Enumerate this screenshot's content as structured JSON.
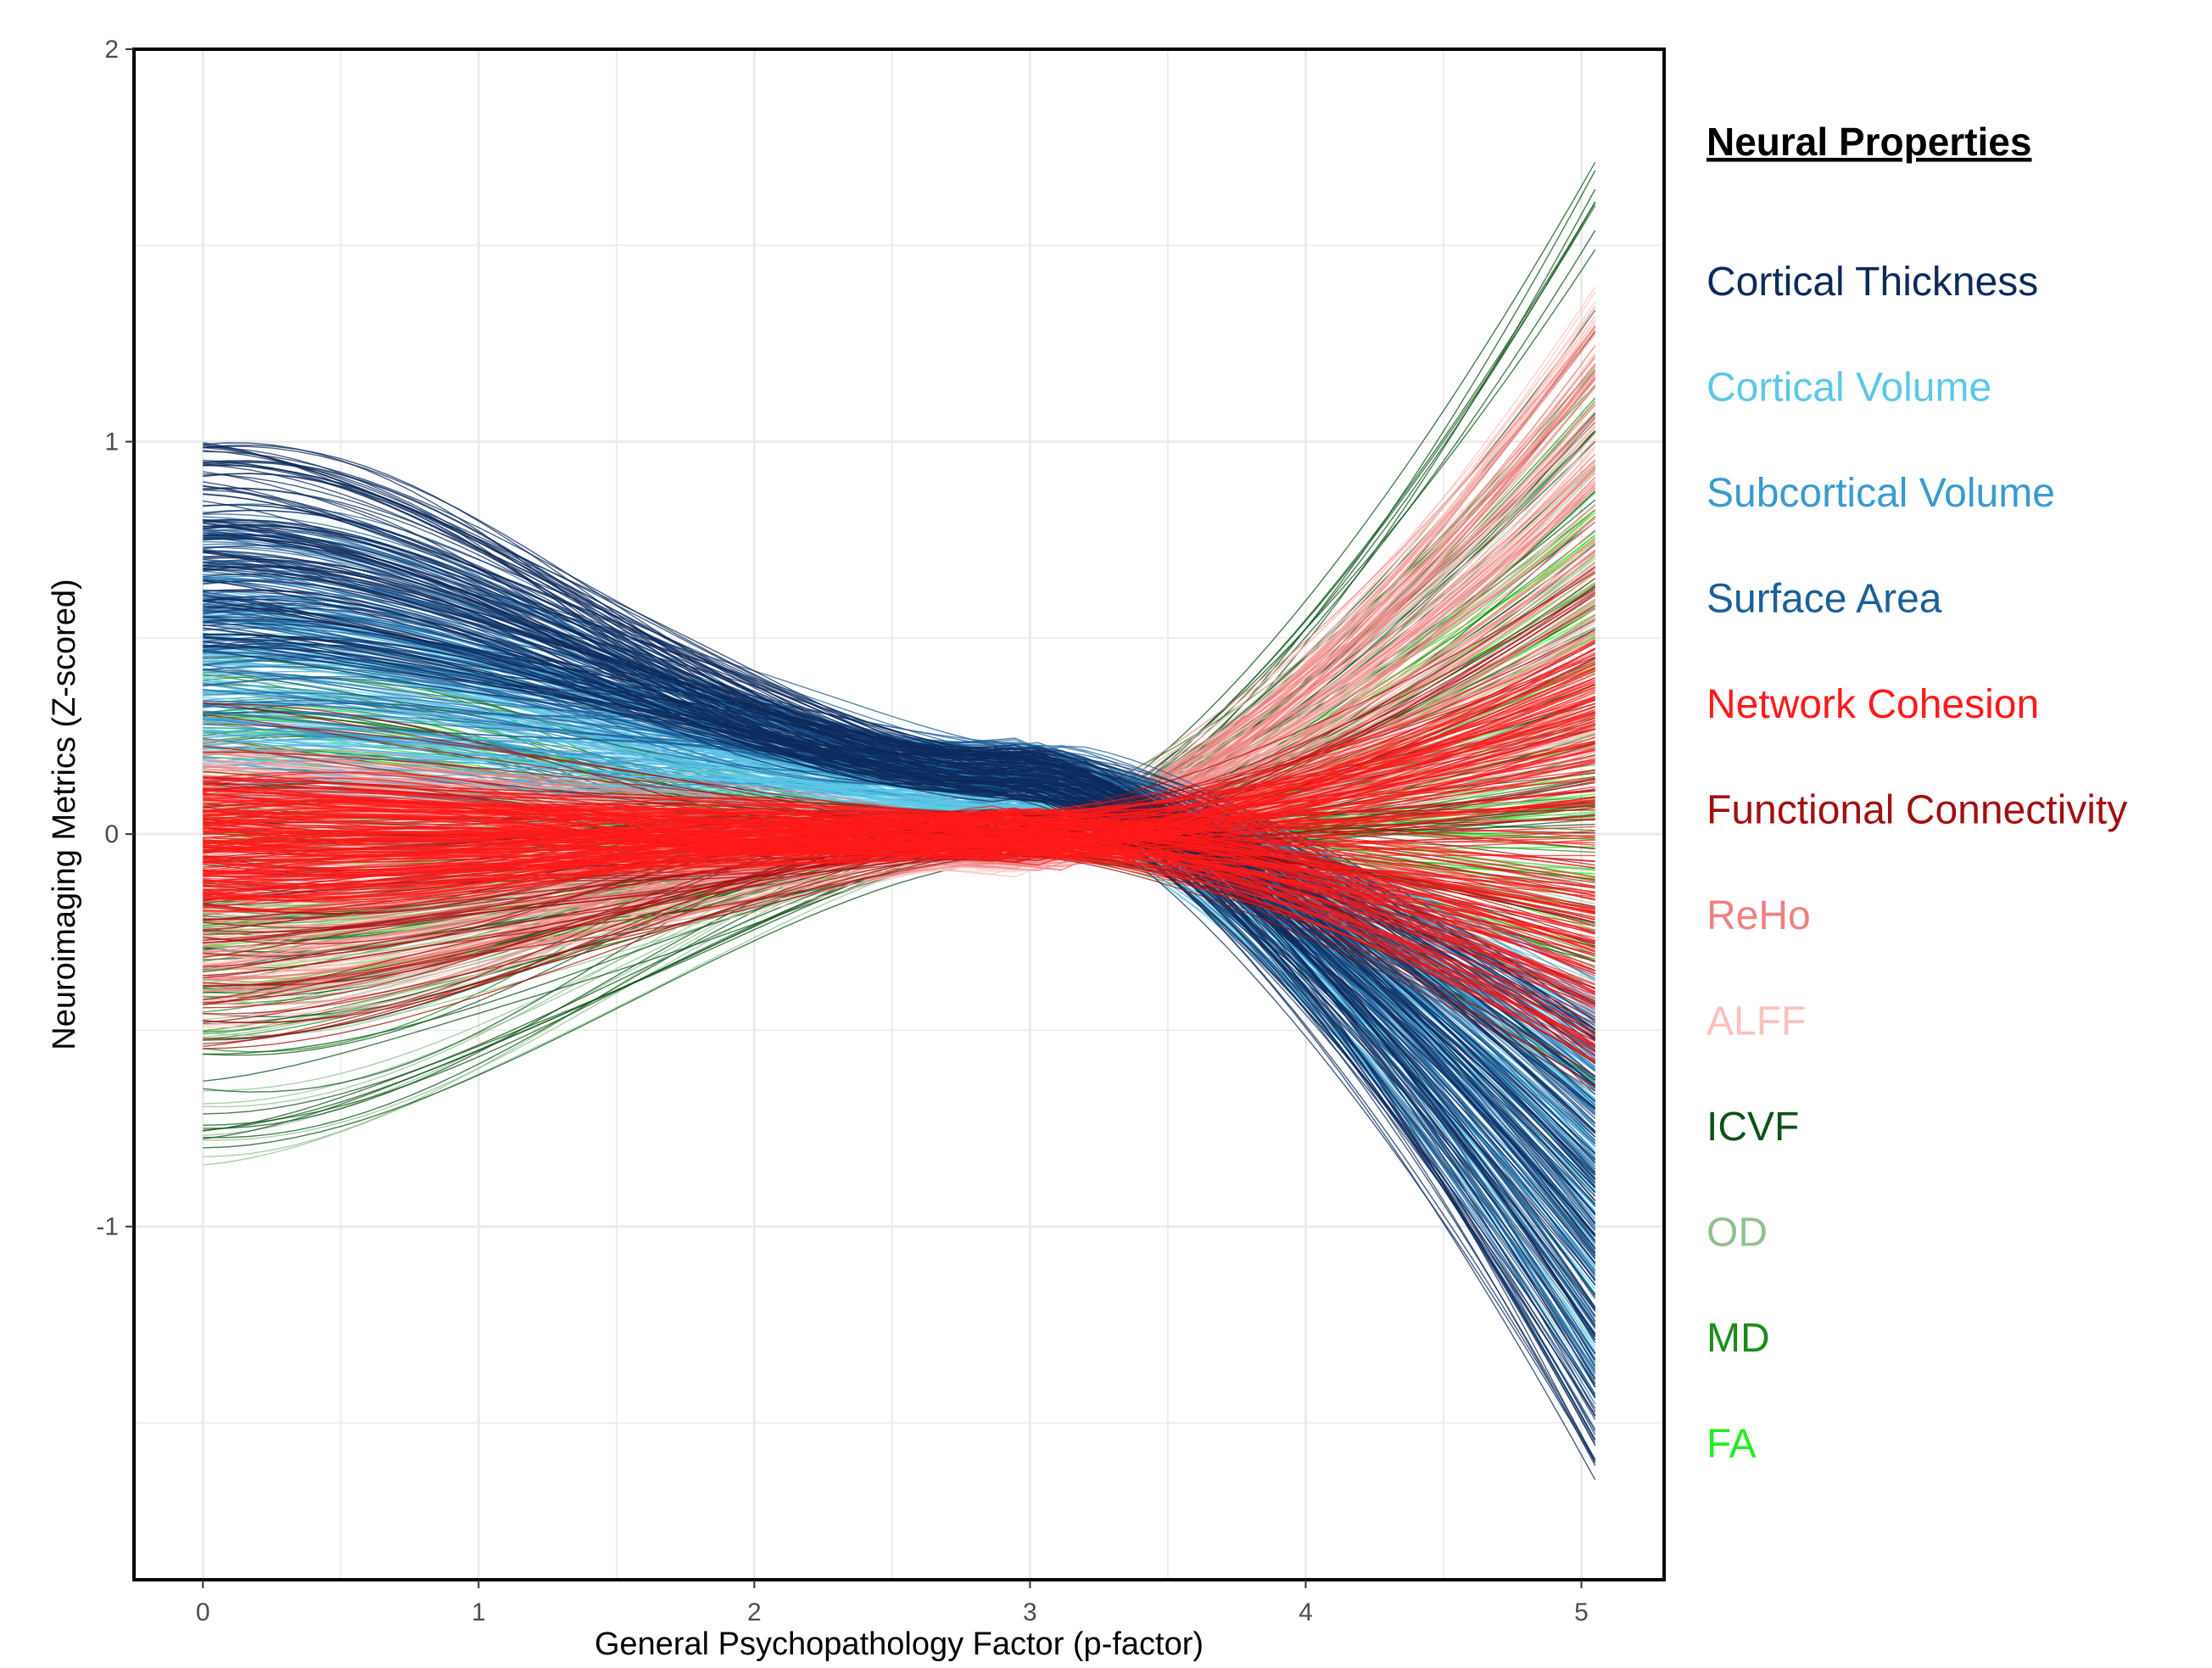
{
  "chart_data": {
    "type": "line",
    "title": "",
    "xlabel": "General Psychopathology Factor (p-factor)",
    "ylabel": "Neuroimaging Metrics (Z-scored)",
    "xlim": [
      -0.25,
      5.3
    ],
    "ylim": [
      -1.9,
      2.0
    ],
    "x_ticks": [
      0,
      1,
      2,
      3,
      4,
      5
    ],
    "x_tick_labels": [
      "0",
      "1",
      "2",
      "3",
      "4",
      "5"
    ],
    "y_ticks": [
      -1,
      0,
      1,
      2
    ],
    "y_tick_labels": [
      "-1",
      "0",
      "1",
      "2"
    ],
    "grid": true,
    "legend": {
      "title": "Neural Properties",
      "position": "right"
    },
    "x_range": [
      0,
      5.05
    ],
    "series": [
      {
        "name": "Cortical Thickness",
        "color": "#0d2a5c",
        "count": 110,
        "start_range": [
          0.45,
          1.0
        ],
        "mid_value": 0.15,
        "end_range": [
          -1.65,
          -0.45
        ]
      },
      {
        "name": "Cortical Volume",
        "color": "#5cc8e6",
        "count": 60,
        "start_range": [
          0.1,
          0.6
        ],
        "mid_value": 0.1,
        "end_range": [
          -1.5,
          -0.4
        ]
      },
      {
        "name": "Subcortical Volume",
        "color": "#3a9ad1",
        "count": 90,
        "start_range": [
          0.1,
          0.7
        ],
        "mid_value": 0.12,
        "end_range": [
          -1.3,
          -0.35
        ]
      },
      {
        "name": "Surface Area",
        "color": "#1c5f99",
        "count": 100,
        "start_range": [
          0.3,
          0.85
        ],
        "mid_value": 0.17,
        "end_range": [
          -1.55,
          -0.4
        ]
      },
      {
        "name": "Network Cohesion",
        "color": "#ff1a1a",
        "count": 160,
        "start_range": [
          -0.2,
          0.15
        ],
        "mid_value": 0.0,
        "end_range": [
          -0.6,
          0.5
        ]
      },
      {
        "name": "Functional Connectivity",
        "color": "#a30f0f",
        "count": 80,
        "start_range": [
          -0.55,
          0.35
        ],
        "mid_value": 0.0,
        "end_range": [
          -0.7,
          0.7
        ]
      },
      {
        "name": "ReHo",
        "color": "#f08080",
        "count": 90,
        "start_range": [
          -0.45,
          0.25
        ],
        "mid_value": -0.02,
        "end_range": [
          0.1,
          1.3
        ]
      },
      {
        "name": "ALFF",
        "color": "#ffc0c0",
        "count": 110,
        "start_range": [
          -0.5,
          0.2
        ],
        "mid_value": -0.03,
        "end_range": [
          0.2,
          1.4
        ]
      },
      {
        "name": "ICVF",
        "color": "#0e5218",
        "count": 50,
        "start_range": [
          -0.8,
          0.35
        ],
        "mid_value": 0.0,
        "end_range": [
          -0.7,
          1.8
        ]
      },
      {
        "name": "OD",
        "color": "#90c090",
        "count": 40,
        "start_range": [
          -0.85,
          0.3
        ],
        "mid_value": 0.0,
        "end_range": [
          -0.4,
          1.3
        ]
      },
      {
        "name": "MD",
        "color": "#1a8c1a",
        "count": 60,
        "start_range": [
          -0.55,
          0.45
        ],
        "mid_value": 0.0,
        "end_range": [
          -0.7,
          1.2
        ]
      },
      {
        "name": "FA",
        "color": "#22ee22",
        "count": 50,
        "start_range": [
          -0.45,
          0.35
        ],
        "mid_value": 0.0,
        "end_range": [
          -0.3,
          0.9
        ]
      }
    ]
  }
}
